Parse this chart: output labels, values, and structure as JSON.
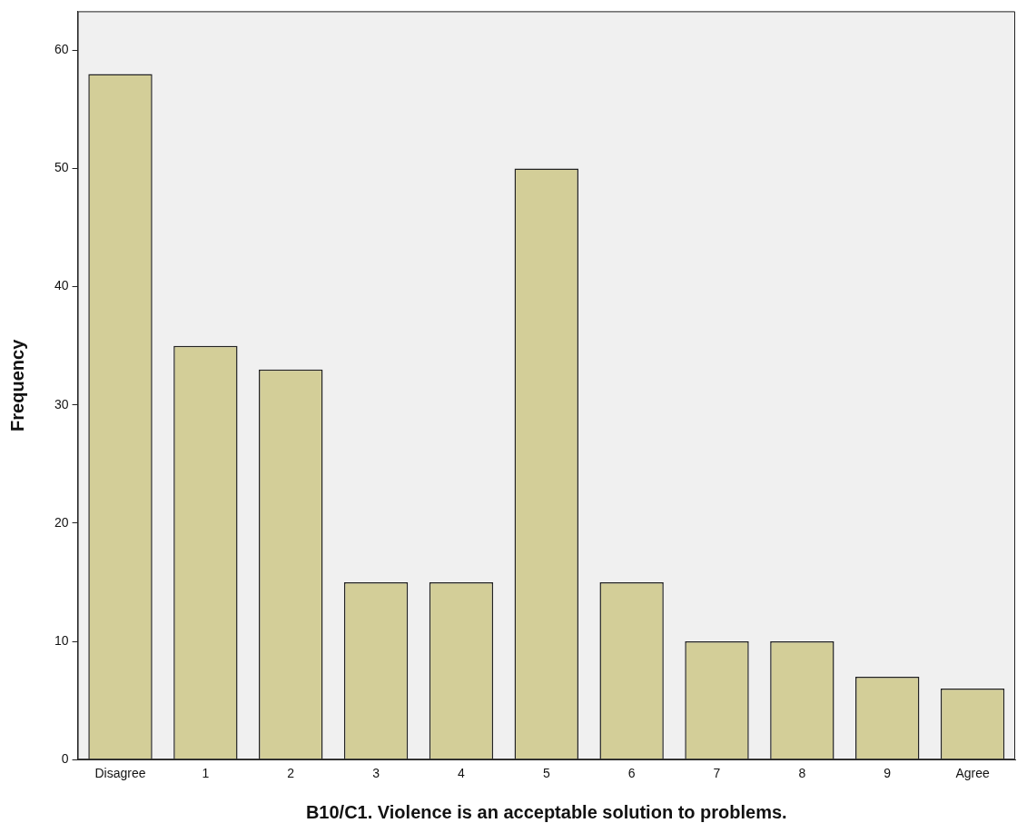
{
  "chart_data": {
    "type": "bar",
    "xlabel": "B10/C1. Violence is an acceptable solution to problems.",
    "ylabel": "Frequency",
    "categories": [
      "Disagree",
      "1",
      "2",
      "3",
      "4",
      "5",
      "6",
      "7",
      "8",
      "9",
      "Agree"
    ],
    "values": [
      58,
      35,
      33,
      15,
      15,
      50,
      15,
      10,
      10,
      7,
      6
    ],
    "color": "#d3ce98",
    "ylim": [
      0,
      63.3
    ],
    "yticks": [
      0,
      10,
      20,
      30,
      40,
      50,
      60
    ],
    "grid": false,
    "legend": false
  }
}
